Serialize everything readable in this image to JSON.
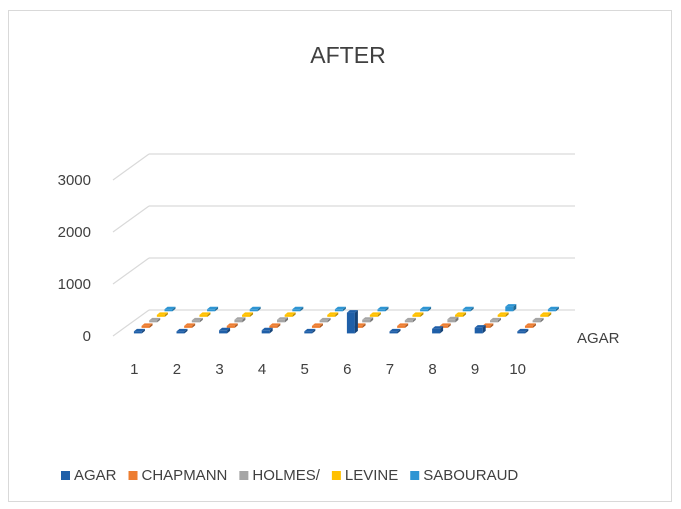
{
  "chart_data": {
    "type": "bar",
    "title": "AFTER",
    "categories": [
      "1",
      "2",
      "3",
      "4",
      "5",
      "6",
      "7",
      "8",
      "9",
      "10"
    ],
    "series": [
      {
        "name": "AGAR",
        "color": "#1f5fa8",
        "values": [
          0,
          0,
          60,
          60,
          0,
          400,
          0,
          90,
          110,
          0
        ]
      },
      {
        "name": "CHAPMANN",
        "color": "#ed7d31",
        "values": [
          0,
          0,
          0,
          0,
          0,
          0,
          0,
          0,
          0,
          20
        ]
      },
      {
        "name": "HOLMES/",
        "color": "#a5a5a5",
        "values": [
          0,
          0,
          50,
          50,
          0,
          50,
          0,
          60,
          0,
          0
        ]
      },
      {
        "name": "LEVINE",
        "color": "#ffc000",
        "values": [
          0,
          0,
          0,
          0,
          0,
          0,
          0,
          0,
          0,
          0
        ]
      },
      {
        "name": "SABOURAUD",
        "color": "#2e95d3",
        "values": [
          40,
          0,
          0,
          0,
          0,
          0,
          0,
          0,
          90,
          20
        ]
      }
    ],
    "y_ticks": [
      "0",
      "1000",
      "2000",
      "3000"
    ],
    "ylim": [
      0,
      3000
    ],
    "depth_axis_label": "AGAR",
    "legend_position": "bottom",
    "grid": true
  }
}
